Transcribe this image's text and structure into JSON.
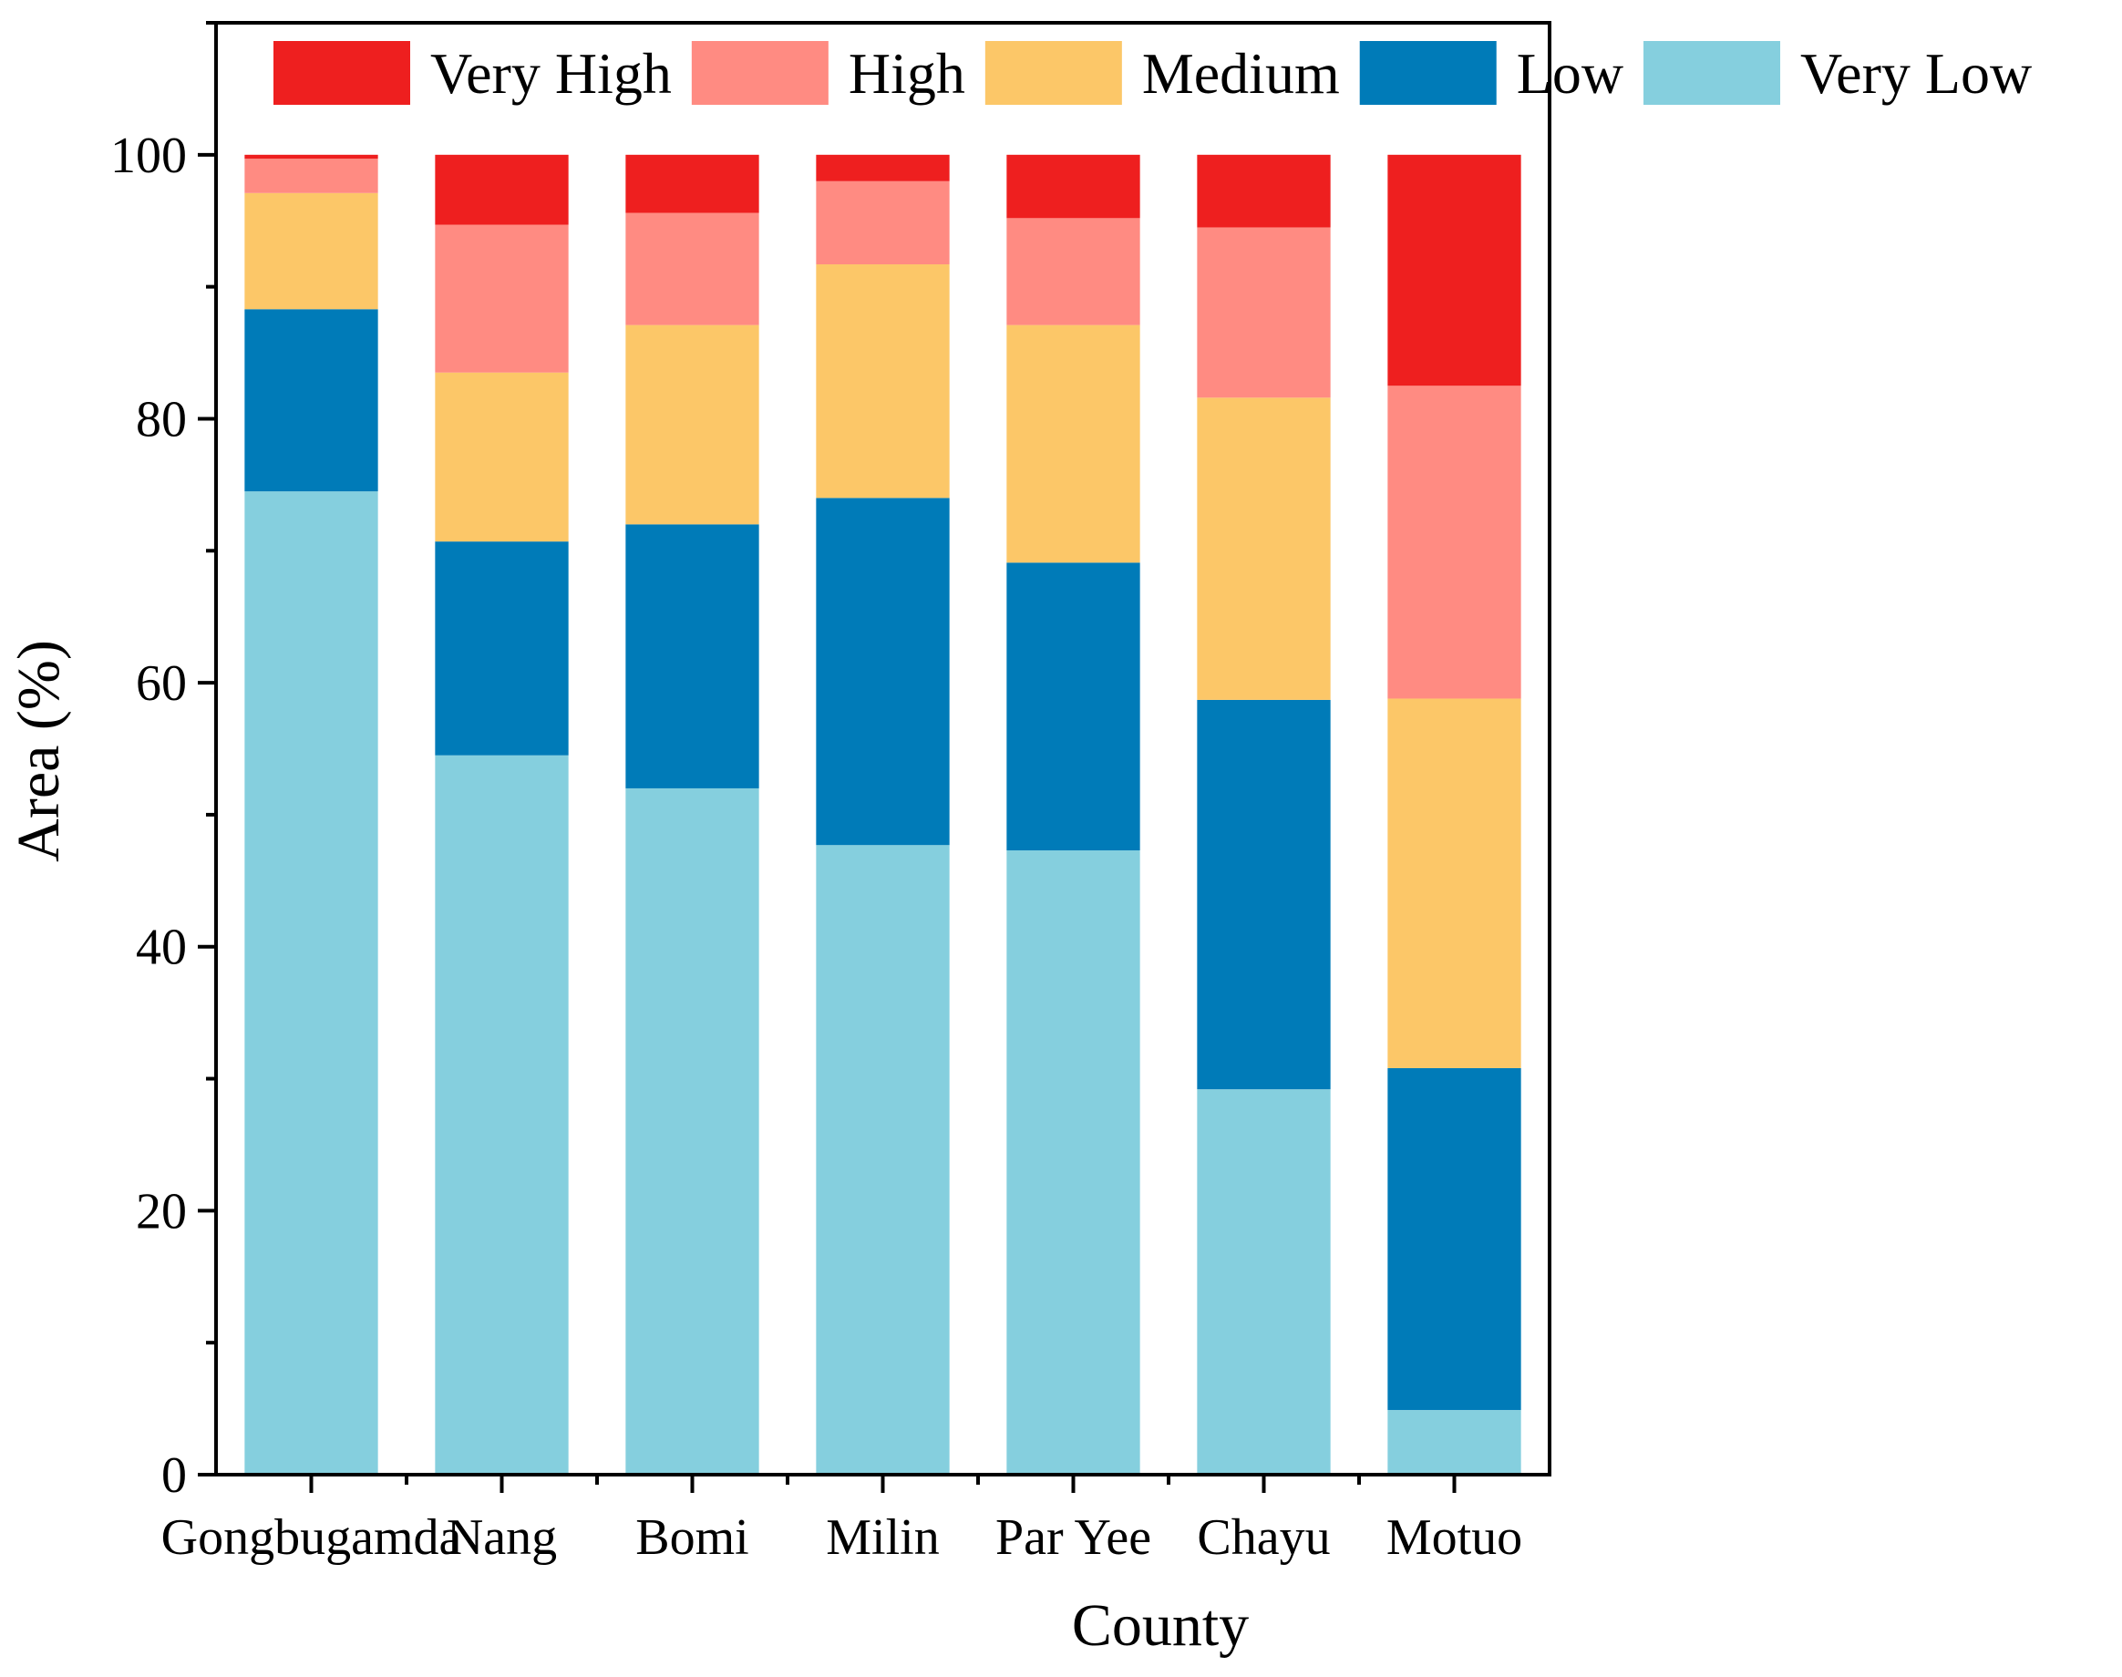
{
  "chart_data": {
    "type": "stacked-bar",
    "title": "",
    "xlabel": "County",
    "ylabel": "Area (%)",
    "ylim": [
      0,
      110
    ],
    "yticks": [
      0,
      20,
      40,
      60,
      80,
      100
    ],
    "grid": false,
    "legend_position": "top",
    "categories": [
      "Gongbugamda",
      "Nang",
      "Bomi",
      "Milin",
      "Par Yee",
      "Chayu",
      "Motuo"
    ],
    "series": [
      {
        "name": "Very Low",
        "color": "#85CFDE",
        "values": [
          74.5,
          54.5,
          52.0,
          47.7,
          47.3,
          29.2,
          4.9
        ]
      },
      {
        "name": "Low",
        "color": "#007BB8",
        "values": [
          13.8,
          16.2,
          20.0,
          26.3,
          21.8,
          29.5,
          25.9
        ]
      },
      {
        "name": "Medium",
        "color": "#FCC768",
        "values": [
          8.8,
          12.8,
          15.1,
          17.7,
          18.0,
          22.9,
          28.0
        ]
      },
      {
        "name": "High",
        "color": "#FF8B82",
        "values": [
          2.6,
          11.2,
          8.5,
          6.3,
          8.1,
          12.9,
          23.7
        ]
      },
      {
        "name": "Very High",
        "color": "#EE1F1F",
        "values": [
          0.3,
          5.3,
          4.4,
          2.0,
          4.8,
          5.5,
          17.5
        ]
      }
    ],
    "legend_order": [
      "Very High",
      "High",
      "Medium",
      "Low",
      "Very Low"
    ]
  }
}
